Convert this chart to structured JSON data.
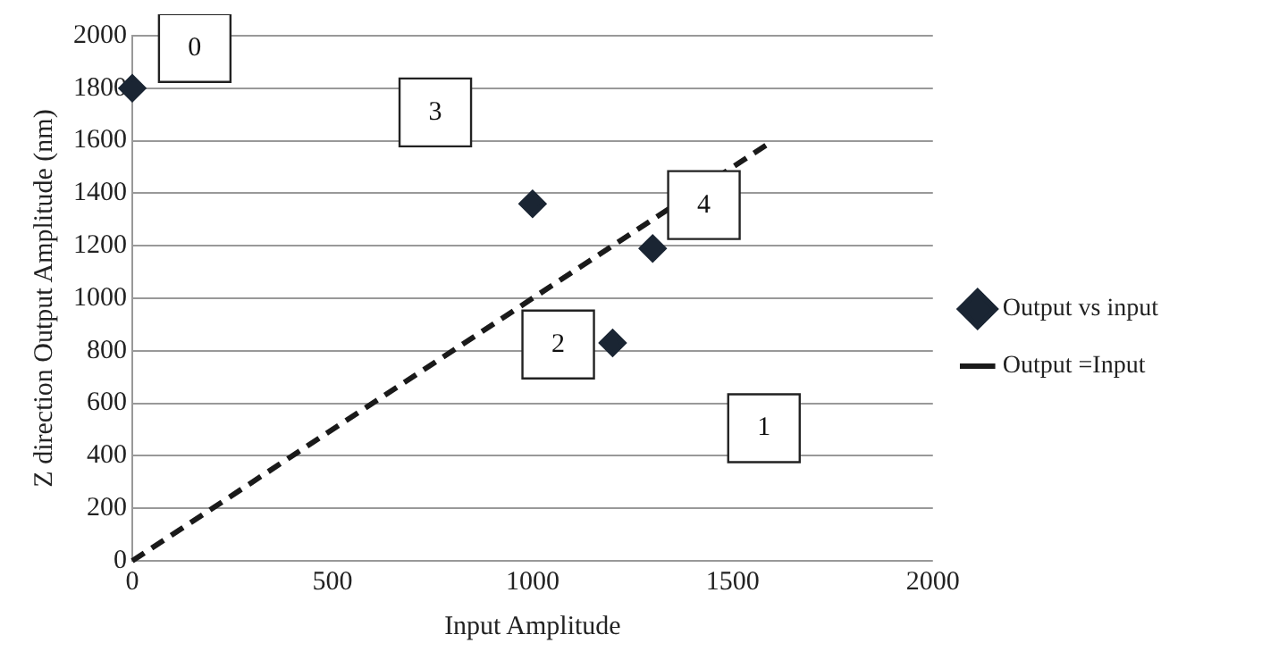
{
  "chart_data": {
    "type": "scatter",
    "xlabel": "Input Amplitude",
    "ylabel": "Z direction Output Amplitude (nm)",
    "series": [
      {
        "name": "Output vs input",
        "color": "#1a2533",
        "marker": "diamond",
        "x": [
          0,
          1000,
          1300,
          1200
        ],
        "values": [
          1800,
          1360,
          1190,
          830
        ]
      },
      {
        "name": "Output =Input",
        "type": "line",
        "color": "#1a1a1a",
        "marker": "none",
        "line_style": "dashed",
        "x": [
          0,
          1600
        ],
        "values": [
          0,
          1600
        ]
      }
    ],
    "xlim": [
      0,
      2000
    ],
    "xticks": [
      0,
      500,
      1000,
      1500,
      2000
    ],
    "ylim": [
      0,
      2000
    ],
    "yticks": [
      0,
      200,
      400,
      600,
      800,
      1000,
      1200,
      1400,
      1600,
      1800,
      2000
    ],
    "grid": "y",
    "legend": "right",
    "annotations": [
      "0",
      "1",
      "2",
      "3",
      "4"
    ]
  }
}
